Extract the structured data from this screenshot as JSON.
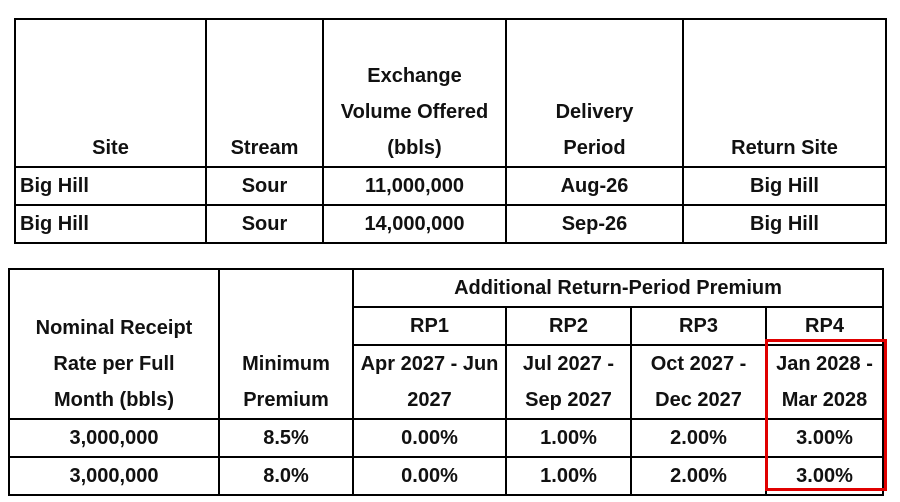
{
  "top_table": {
    "headers": [
      "Site",
      "Stream",
      "Exchange Volume Offered (bbls)",
      "Delivery Period",
      "Return Site"
    ],
    "rows": [
      [
        "Big Hill",
        "Sour",
        "11,000,000",
        "Aug-26",
        "Big Hill"
      ],
      [
        "Big Hill",
        "Sour",
        "14,000,000",
        "Sep-26",
        "Big Hill"
      ]
    ]
  },
  "bottom_table": {
    "rate_header": "Nominal Receipt Rate per Full Month (bbls)",
    "minimum_header": "Minimum Premium",
    "group_header": "Additional Return-Period Premium",
    "periods": [
      "RP1",
      "RP2",
      "RP3",
      "RP4"
    ],
    "ranges": [
      "Apr 2027 - Jun 2027",
      "Jul 2027 - Sep 2027",
      "Oct 2027 - Dec 2027",
      "Jan 2028 - Mar 2028"
    ],
    "rows": [
      [
        "3,000,000",
        "8.5%",
        "0.00%",
        "1.00%",
        "2.00%",
        "3.00%"
      ],
      [
        "3,000,000",
        "8.0%",
        "0.00%",
        "1.00%",
        "2.00%",
        "3.00%"
      ]
    ]
  }
}
